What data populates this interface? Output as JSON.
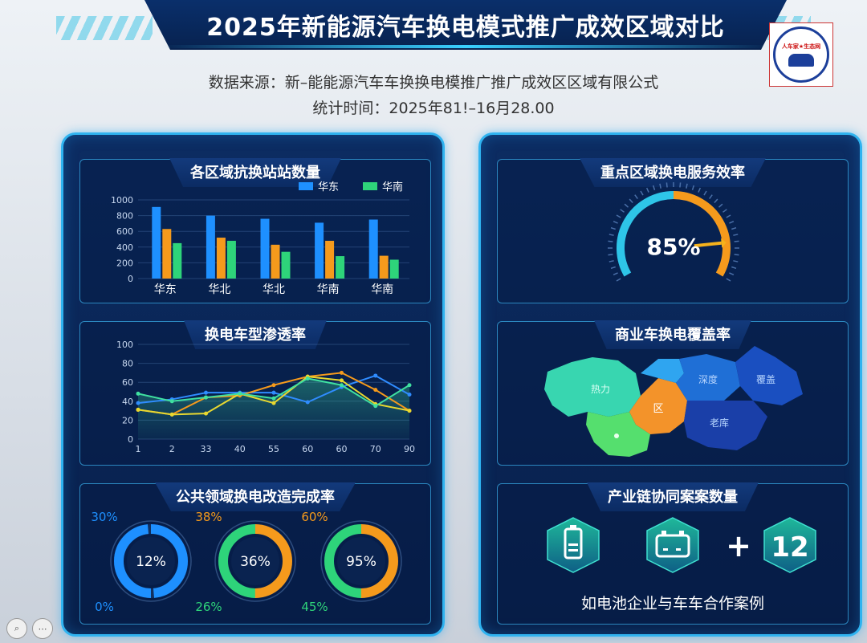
{
  "header": {
    "title": "2025年新能源汽车换电模式推广成效区域对比",
    "source": "数据来源：新–能能源汽车车换换电模推广推广成效区区域有限公式",
    "stat_time": "统计时间：2025年81!–16月28.00",
    "logo_text": "人车家★生态网"
  },
  "panels": {
    "stations": {
      "title": "各区域抗换站站数量",
      "legend": [
        "华东",
        "华南"
      ],
      "chart_data": {
        "type": "bar",
        "categories": [
          "华东",
          "华北",
          "华北",
          "华南",
          "华南"
        ],
        "ylim": [
          0,
          1000
        ],
        "yticks": [
          0,
          200,
          400,
          600,
          800,
          1000
        ],
        "series": [
          {
            "name": "华东",
            "color": "#1e90ff",
            "values": [
              910,
              800,
              760,
              710,
              750
            ]
          },
          {
            "color": "#f59a1c",
            "values": [
              630,
              520,
              430,
              480,
              290
            ]
          },
          {
            "name": "华南",
            "color": "#2ed47a",
            "values": [
              450,
              480,
              340,
              285,
              240
            ]
          }
        ]
      }
    },
    "penetration": {
      "title": "换电车型渗透率",
      "chart_data": {
        "type": "line",
        "x": [
          "1",
          "2",
          "33",
          "40",
          "55",
          "60",
          "60",
          "70",
          "90"
        ],
        "ylim": [
          0,
          100
        ],
        "yticks": [
          0,
          20,
          40,
          60,
          80,
          100
        ],
        "series": [
          {
            "color": "#2f8cff",
            "values": [
              38,
              42,
              49,
              49,
              49,
              39,
              55,
              67,
              47
            ]
          },
          {
            "color": "#f59a1c",
            "values": [
              31,
              26,
              44,
              46,
              57,
              66,
              70,
              52,
              30
            ]
          },
          {
            "color": "#e8d830",
            "values": [
              31,
              26,
              27,
              48,
              38,
              66,
              62,
              37,
              30
            ]
          },
          {
            "color": "#3fe0a0",
            "values": [
              48,
              40,
              44,
              48,
              43,
              64,
              57,
              35,
              57
            ]
          }
        ]
      }
    },
    "retrofit": {
      "title": "公共领域换电改造完成率",
      "rings": [
        {
          "center": "12%",
          "top": "30%",
          "bottom": "0%",
          "value": 97,
          "top_color": "#1e90ff",
          "bottom_color": "#1e90ff",
          "ring": [
            "#1e90ff",
            "#1e90ff"
          ]
        },
        {
          "center": "36%",
          "top": "38%",
          "bottom": "26%",
          "value": 100,
          "top_color": "#f59a1c",
          "bottom_color": "#2ed47a",
          "ring": [
            "#2ed47a",
            "#f59a1c"
          ]
        },
        {
          "center": "95%",
          "top": "60%",
          "bottom": "45%",
          "value": 100,
          "top_color": "#f59a1c",
          "bottom_color": "#2ed47a",
          "ring": [
            "#2ed47a",
            "#f59a1c"
          ]
        }
      ]
    },
    "efficiency": {
      "title": "重点区域换电服务效率",
      "value_label": "85%",
      "value": 85
    },
    "coverage": {
      "title": "商业车换电覆盖率",
      "regions": [
        "热力",
        "区",
        "深度",
        "覆盖",
        "老库"
      ]
    },
    "cases": {
      "title": "产业链协同案案数量",
      "plus": "+",
      "count": "12",
      "caption": "如电池企业与车车合作案例",
      "icons": [
        "battery-icon",
        "battery-pack-icon"
      ]
    }
  },
  "footer": {
    "icons": [
      "zoom-icon",
      "more-icon"
    ]
  }
}
